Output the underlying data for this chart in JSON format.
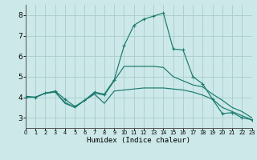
{
  "background_color": "#cce8e8",
  "grid_color": "#aacccc",
  "line_color": "#1a7a6e",
  "xlabel": "Humidex (Indice chaleur)",
  "xlim": [
    0,
    23
  ],
  "ylim": [
    2.5,
    8.5
  ],
  "xticks": [
    0,
    1,
    2,
    3,
    4,
    5,
    6,
    7,
    8,
    9,
    10,
    11,
    12,
    13,
    14,
    15,
    16,
    17,
    18,
    19,
    20,
    21,
    22,
    23
  ],
  "yticks": [
    3,
    4,
    5,
    6,
    7,
    8
  ],
  "series1_y": [
    4.0,
    4.0,
    4.2,
    4.3,
    3.9,
    3.55,
    3.85,
    4.25,
    4.15,
    4.85,
    6.5,
    7.5,
    7.8,
    7.95,
    8.1,
    6.35,
    6.3,
    5.0,
    4.65,
    3.9,
    3.2,
    3.25,
    3.0,
    2.9
  ],
  "series2_y": [
    4.0,
    4.0,
    4.2,
    4.25,
    3.7,
    3.5,
    3.85,
    4.15,
    3.7,
    4.3,
    4.35,
    4.4,
    4.45,
    4.45,
    4.45,
    4.4,
    4.35,
    4.25,
    4.1,
    3.9,
    3.5,
    3.3,
    3.1,
    2.9
  ],
  "series3_y": [
    4.05,
    4.0,
    4.2,
    4.25,
    3.75,
    3.5,
    3.85,
    4.2,
    4.1,
    4.8,
    5.5,
    5.5,
    5.5,
    5.5,
    5.45,
    5.0,
    4.8,
    4.6,
    4.5,
    4.15,
    3.85,
    3.5,
    3.3,
    3.0
  ]
}
